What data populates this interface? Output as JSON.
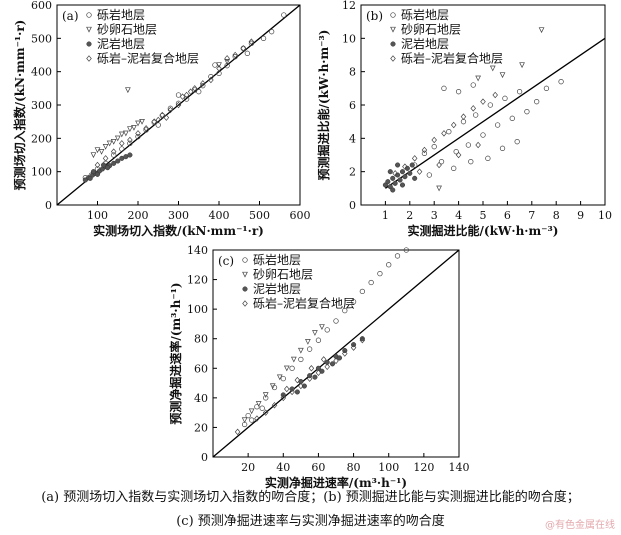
{
  "caption": {
    "line1": "(a) 预测场切入指数与实测场切入指数的吻合度；(b) 预测掘进比能与实测掘进比能的吻合度；",
    "line2": "(c) 预测净掘进速率与实测净掘进速率的吻合度"
  },
  "watermark": "@有色金属在线",
  "chart_data": [
    {
      "type": "scatter",
      "panel_label": "(a)",
      "xlabel": "实测场切入指数/(kN·mm⁻¹·r)",
      "ylabel": "预测场切入指数/(kN·mm⁻¹·r)",
      "xlim": [
        0,
        600
      ],
      "ylim": [
        0,
        600
      ],
      "xticks": [
        100,
        200,
        300,
        400,
        500,
        600
      ],
      "yticks": [
        0,
        100,
        200,
        300,
        400,
        500,
        600
      ],
      "legend_position": "top-left",
      "reference_line": "y=x",
      "series": [
        {
          "name": "砾岩地层",
          "marker": "circle",
          "points": [
            [
              70,
              82
            ],
            [
              85,
              90
            ],
            [
              100,
              108
            ],
            [
              120,
              125
            ],
            [
              140,
              150
            ],
            [
              160,
              168
            ],
            [
              180,
              185
            ],
            [
              200,
              205
            ],
            [
              220,
              225
            ],
            [
              240,
              248
            ],
            [
              260,
              268
            ],
            [
              280,
              290
            ],
            [
              300,
              305
            ],
            [
              320,
              318
            ],
            [
              340,
              345
            ],
            [
              360,
              358
            ],
            [
              380,
              385
            ],
            [
              400,
              395
            ],
            [
              420,
              418
            ],
            [
              440,
              445
            ],
            [
              460,
              470
            ],
            [
              480,
              485
            ],
            [
              510,
              500
            ],
            [
              530,
              520
            ],
            [
              560,
              570
            ],
            [
              250,
              240
            ],
            [
              300,
              330
            ],
            [
              350,
              340
            ],
            [
              390,
              420
            ],
            [
              470,
              455
            ]
          ]
        },
        {
          "name": "砂卵石地层",
          "marker": "triangle-down",
          "points": [
            [
              90,
              150
            ],
            [
              100,
              165
            ],
            [
              110,
              160
            ],
            [
              120,
              175
            ],
            [
              130,
              185
            ],
            [
              140,
              190
            ],
            [
              150,
              200
            ],
            [
              160,
              212
            ],
            [
              170,
              215
            ],
            [
              180,
              228
            ],
            [
              190,
              232
            ],
            [
              200,
              245
            ],
            [
              210,
              250
            ],
            [
              175,
              345
            ],
            [
              400,
              420
            ],
            [
              420,
              430
            ]
          ]
        },
        {
          "name": "泥岩地层",
          "marker": "circle-filled",
          "points": [
            [
              70,
              75
            ],
            [
              78,
              82
            ],
            [
              82,
              80
            ],
            [
              88,
              90
            ],
            [
              95,
              95
            ],
            [
              105,
              102
            ],
            [
              112,
              108
            ],
            [
              120,
              115
            ],
            [
              130,
              118
            ],
            [
              140,
              125
            ],
            [
              150,
              132
            ],
            [
              160,
              140
            ],
            [
              170,
              145
            ],
            [
              180,
              150
            ],
            [
              90,
              100
            ],
            [
              100,
              92
            ],
            [
              115,
              120
            ],
            [
              125,
              112
            ]
          ]
        },
        {
          "name": "砾岩–泥岩复合地层",
          "marker": "diamond",
          "points": [
            [
              100,
              120
            ],
            [
              120,
              140
            ],
            [
              140,
              160
            ],
            [
              160,
              185
            ],
            [
              180,
              195
            ],
            [
              200,
              215
            ],
            [
              220,
              230
            ],
            [
              240,
              250
            ],
            [
              260,
              270
            ],
            [
              280,
              285
            ],
            [
              300,
              300
            ],
            [
              320,
              330
            ],
            [
              340,
              350
            ],
            [
              360,
              365
            ],
            [
              380,
              375
            ],
            [
              400,
              410
            ],
            [
              420,
              440
            ],
            [
              440,
              450
            ],
            [
              460,
              470
            ],
            [
              480,
              490
            ],
            [
              250,
              255
            ],
            [
              270,
              262
            ],
            [
              310,
              325
            ],
            [
              330,
              340
            ]
          ]
        }
      ]
    },
    {
      "type": "scatter",
      "panel_label": "(b)",
      "xlabel": "实测掘进比能/(kW·h·m⁻³)",
      "ylabel": "预测掘进比能/(kW·h·m⁻³)",
      "xlim": [
        0,
        10
      ],
      "ylim": [
        0,
        12
      ],
      "xticks": [
        1,
        2,
        3,
        4,
        5,
        6,
        7,
        8,
        9,
        10
      ],
      "yticks": [
        0,
        2,
        4,
        6,
        8,
        10,
        12
      ],
      "legend_position": "top-left",
      "reference_line": "trend line from (1,1) to (10,10)",
      "series": [
        {
          "name": "砾岩地层",
          "marker": "circle",
          "points": [
            [
              2.2,
              2.4
            ],
            [
              2.6,
              3.1
            ],
            [
              3.0,
              3.5
            ],
            [
              3.3,
              2.6
            ],
            [
              3.6,
              4.4
            ],
            [
              3.9,
              3.2
            ],
            [
              4.2,
              5.0
            ],
            [
              4.4,
              3.6
            ],
            [
              4.7,
              5.4
            ],
            [
              5.0,
              4.2
            ],
            [
              5.3,
              6.0
            ],
            [
              5.6,
              4.8
            ],
            [
              5.9,
              6.4
            ],
            [
              6.2,
              5.2
            ],
            [
              6.5,
              6.8
            ],
            [
              6.8,
              5.6
            ],
            [
              7.2,
              6.2
            ],
            [
              7.6,
              7.0
            ],
            [
              8.2,
              7.4
            ],
            [
              3.4,
              7.0
            ],
            [
              4.0,
              6.8
            ],
            [
              4.6,
              7.2
            ],
            [
              5.2,
              2.8
            ],
            [
              5.8,
              3.4
            ],
            [
              6.4,
              3.8
            ],
            [
              2.8,
              1.8
            ],
            [
              3.8,
              2.2
            ],
            [
              4.5,
              2.6
            ]
          ]
        },
        {
          "name": "砂卵石地层",
          "marker": "triangle-down",
          "points": [
            [
              5.4,
              8.2
            ],
            [
              5.8,
              7.8
            ],
            [
              6.6,
              8.4
            ],
            [
              7.4,
              10.5
            ],
            [
              4.8,
              7.6
            ],
            [
              3.2,
              1.0
            ]
          ]
        },
        {
          "name": "泥岩地层",
          "marker": "circle-filled",
          "points": [
            [
              1.0,
              1.2
            ],
            [
              1.1,
              1.4
            ],
            [
              1.2,
              1.1
            ],
            [
              1.3,
              1.6
            ],
            [
              1.4,
              1.3
            ],
            [
              1.5,
              1.8
            ],
            [
              1.6,
              1.5
            ],
            [
              1.7,
              2.0
            ],
            [
              1.8,
              1.7
            ],
            [
              1.9,
              2.2
            ],
            [
              2.0,
              1.9
            ],
            [
              2.1,
              2.4
            ],
            [
              1.2,
              2.0
            ],
            [
              1.5,
              2.4
            ],
            [
              1.7,
              1.2
            ],
            [
              2.2,
              1.6
            ],
            [
              1.3,
              0.9
            ]
          ]
        },
        {
          "name": "砾岩–泥岩复合地层",
          "marker": "diamond",
          "points": [
            [
              1.4,
              1.9
            ],
            [
              1.8,
              2.3
            ],
            [
              2.2,
              2.8
            ],
            [
              2.6,
              3.3
            ],
            [
              3.0,
              3.9
            ],
            [
              3.4,
              4.3
            ],
            [
              3.8,
              4.8
            ],
            [
              4.2,
              5.3
            ],
            [
              4.6,
              5.8
            ],
            [
              5.0,
              6.2
            ],
            [
              5.5,
              6.6
            ],
            [
              2.4,
              2.0
            ],
            [
              3.2,
              2.4
            ],
            [
              4.0,
              3.0
            ],
            [
              4.8,
              3.6
            ]
          ]
        }
      ]
    },
    {
      "type": "scatter",
      "panel_label": "(c)",
      "xlabel": "实测净掘进速率/(m³·h⁻¹)",
      "ylabel": "预测净掘进速率/(m³·h⁻¹)",
      "xlim": [
        0,
        140
      ],
      "ylim": [
        0,
        140
      ],
      "xticks": [
        20,
        40,
        60,
        80,
        100,
        120,
        140
      ],
      "yticks": [
        0,
        20,
        40,
        60,
        80,
        100,
        120,
        140
      ],
      "legend_position": "top-left",
      "reference_line": "y=x",
      "series": [
        {
          "name": "砾岩地层",
          "marker": "circle",
          "points": [
            [
              20,
              28
            ],
            [
              25,
              34
            ],
            [
              30,
              40
            ],
            [
              35,
              47
            ],
            [
              40,
              53
            ],
            [
              45,
              60
            ],
            [
              50,
              66
            ],
            [
              55,
              73
            ],
            [
              60,
              79
            ],
            [
              65,
              86
            ],
            [
              70,
              92
            ],
            [
              75,
              99
            ],
            [
              80,
              105
            ],
            [
              85,
              112
            ],
            [
              90,
              118
            ],
            [
              95,
              124
            ],
            [
              100,
              130
            ],
            [
              105,
              136
            ],
            [
              110,
              140
            ],
            [
              18,
              22
            ],
            [
              22,
              25
            ],
            [
              28,
              33
            ]
          ]
        },
        {
          "name": "砂卵石地层",
          "marker": "triangle-down",
          "points": [
            [
              18,
              25
            ],
            [
              22,
              31
            ],
            [
              26,
              36
            ],
            [
              30,
              42
            ],
            [
              34,
              48
            ],
            [
              38,
              54
            ],
            [
              42,
              60
            ],
            [
              46,
              66
            ],
            [
              50,
              72
            ],
            [
              54,
              78
            ],
            [
              58,
              84
            ],
            [
              62,
              88
            ]
          ]
        },
        {
          "name": "泥岩地层",
          "marker": "circle-filled",
          "points": [
            [
              40,
              42
            ],
            [
              45,
              46
            ],
            [
              50,
              51
            ],
            [
              55,
              55
            ],
            [
              60,
              60
            ],
            [
              65,
              64
            ],
            [
              70,
              68
            ],
            [
              75,
              72
            ],
            [
              80,
              76
            ],
            [
              85,
              80
            ],
            [
              48,
              44
            ],
            [
              52,
              48
            ],
            [
              58,
              54
            ],
            [
              62,
              58
            ],
            [
              68,
              63
            ],
            [
              72,
              67
            ]
          ]
        },
        {
          "name": "砾岩–泥岩复合地层",
          "marker": "diamond",
          "points": [
            [
              25,
              26
            ],
            [
              30,
              30
            ],
            [
              35,
              35
            ],
            [
              40,
              40
            ],
            [
              45,
              44
            ],
            [
              50,
              48
            ],
            [
              55,
              53
            ],
            [
              60,
              57
            ],
            [
              65,
              61
            ],
            [
              70,
              65
            ],
            [
              75,
              70
            ],
            [
              80,
              74
            ],
            [
              85,
              79
            ],
            [
              42,
              46
            ],
            [
              48,
              52
            ],
            [
              56,
              60
            ],
            [
              63,
              66
            ],
            [
              14,
              17
            ]
          ]
        }
      ]
    }
  ]
}
